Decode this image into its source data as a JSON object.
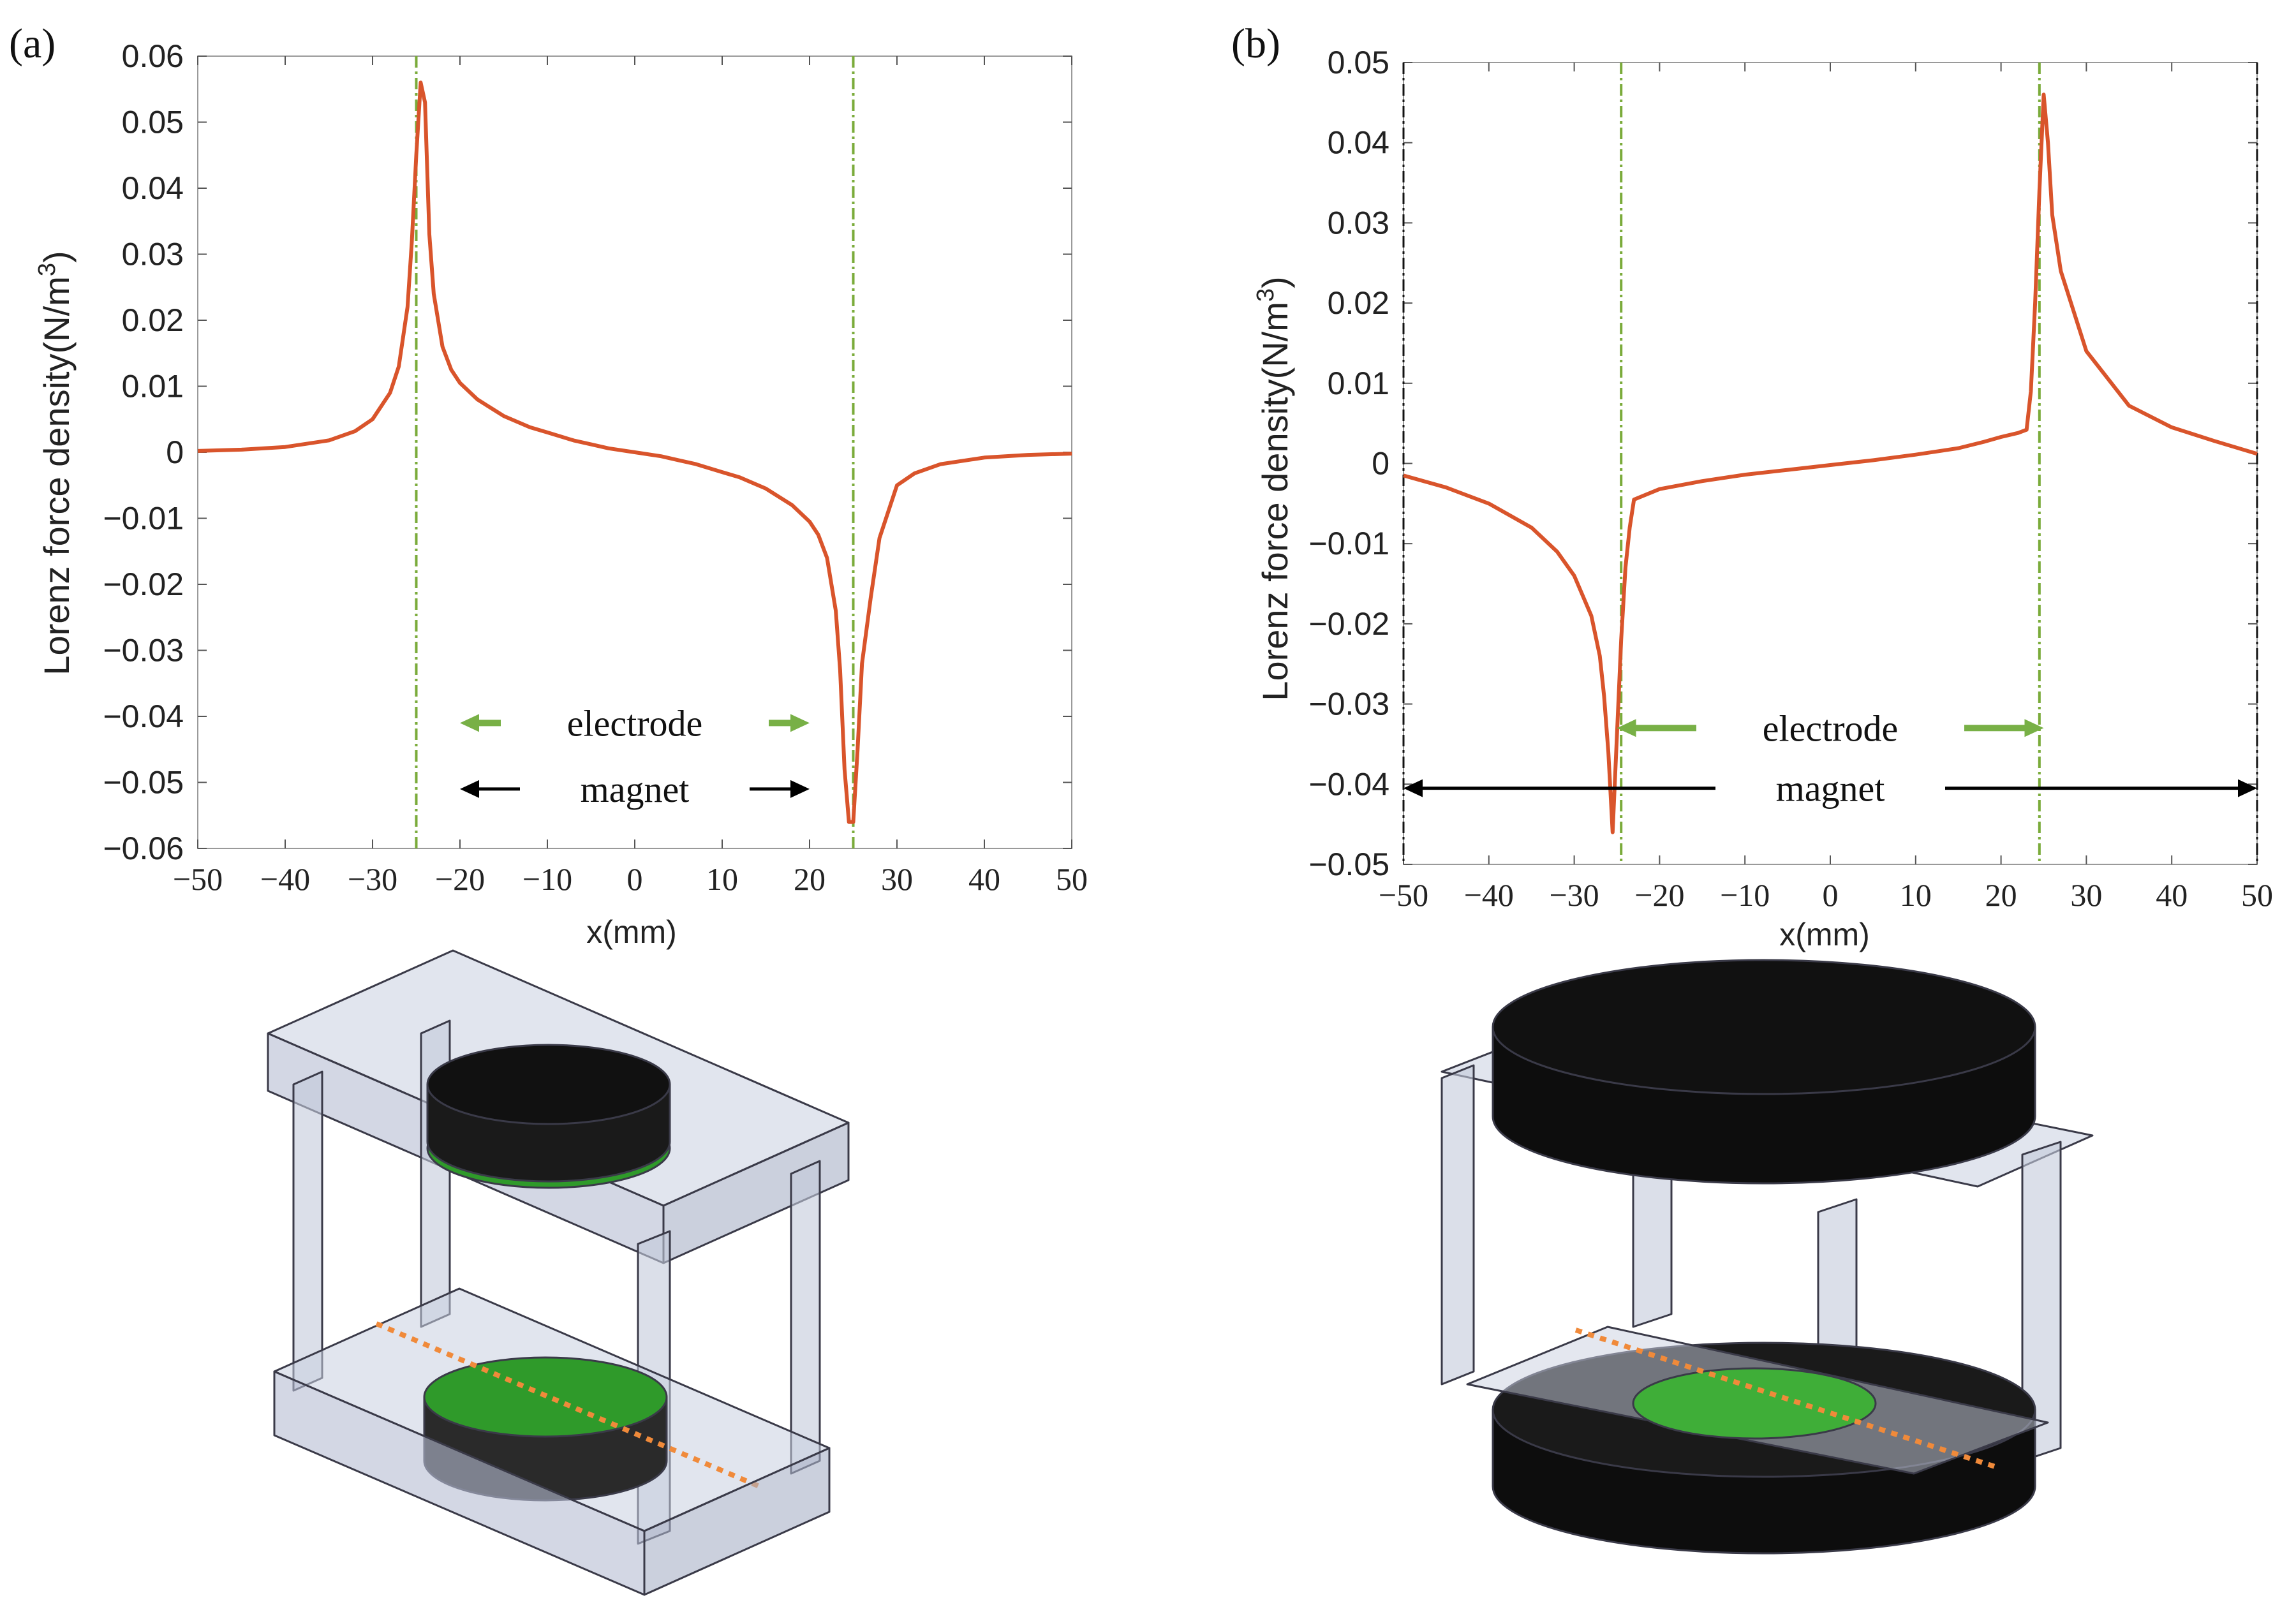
{
  "panel_labels": [
    "(a)",
    "(b)"
  ],
  "colors": {
    "curve": "#d9542b",
    "electrode_line": "#7aab3a",
    "magnet_line": "#000000",
    "electrode_arrow": "#78b046",
    "magnet_arrow": "#000000",
    "axis": "#222222",
    "frame_fill": "#c9cfe0",
    "frame_stroke": "#3a3a48",
    "magnet_fill": "#111111",
    "electrode_fill": "#2f9a2a",
    "dotted_path": "#f08a3a"
  },
  "chart_data": [
    {
      "panel": "(a)",
      "type": "line",
      "title": "",
      "xlabel": "x(mm)",
      "ylabel": "Lorenz force density(N/m",
      "ylabel_superscript": "3",
      "ylabel_close": ")",
      "xlim": [
        -50,
        50
      ],
      "ylim": [
        -0.06,
        0.06
      ],
      "xticks": [
        -50,
        -40,
        -30,
        -20,
        -10,
        0,
        10,
        20,
        30,
        40,
        50
      ],
      "xtick_labels": [
        "−50",
        "−40",
        "−30",
        "−20",
        "−10",
        "0",
        "10",
        "20",
        "30",
        "40",
        "50"
      ],
      "yticks": [
        0.06,
        0.05,
        0.04,
        0.03,
        0.02,
        0.01,
        0,
        -0.01,
        -0.02,
        -0.03,
        -0.04,
        -0.05,
        -0.06
      ],
      "ytick_labels": [
        "0.06",
        "0.05",
        "0.04",
        "0.03",
        "0.02",
        "0.01",
        "0",
        "−0.01",
        "−0.02",
        "−0.03",
        "−0.04",
        "−0.05",
        "−0.06"
      ],
      "series": [
        {
          "name": "Lorenz force density",
          "x": [
            -50,
            -45,
            -40,
            -35,
            -32,
            -30,
            -28,
            -27,
            -26,
            -25.5,
            -25,
            -24.5,
            -24,
            -23.5,
            -23,
            -22,
            -21,
            -20,
            -18,
            -15,
            -12,
            -10,
            -7,
            -5,
            -3,
            0,
            3,
            5,
            7,
            10,
            12,
            15,
            18,
            20,
            21,
            22,
            23,
            23.5,
            24,
            24.5,
            25,
            25.5,
            26,
            27,
            28,
            30,
            32,
            35,
            40,
            45,
            50
          ],
          "y": [
            0.0002,
            0.0004,
            0.0008,
            0.0018,
            0.0032,
            0.005,
            0.009,
            0.013,
            0.022,
            0.032,
            0.045,
            0.056,
            0.053,
            0.033,
            0.024,
            0.016,
            0.0125,
            0.0105,
            0.008,
            0.0055,
            0.0038,
            0.003,
            0.0018,
            0.0012,
            0.0006,
            0.0,
            -0.0006,
            -0.0012,
            -0.0018,
            -0.003,
            -0.0038,
            -0.0055,
            -0.008,
            -0.0105,
            -0.0125,
            -0.016,
            -0.024,
            -0.033,
            -0.048,
            -0.056,
            -0.056,
            -0.045,
            -0.032,
            -0.022,
            -0.013,
            -0.005,
            -0.0032,
            -0.0018,
            -0.0008,
            -0.0004,
            -0.0002
          ]
        }
      ],
      "vlines": [
        -25,
        25
      ],
      "annotations": [
        {
          "text": "electrode",
          "arrow_from": -20,
          "arrow_to": 20,
          "y": -0.041,
          "style": "electrode"
        },
        {
          "text": "magnet",
          "arrow_from": -20,
          "arrow_to": 20,
          "y": -0.051,
          "style": "magnet"
        }
      ],
      "grid": false
    },
    {
      "panel": "(b)",
      "type": "line",
      "title": "",
      "xlabel": "x(mm)",
      "ylabel": "Lorenz force density(N/m",
      "ylabel_superscript": "3",
      "ylabel_close": ")",
      "xlim": [
        -50,
        50
      ],
      "ylim": [
        -0.05,
        0.05
      ],
      "xticks": [
        -50,
        -40,
        -30,
        -20,
        -10,
        0,
        10,
        20,
        30,
        40,
        50
      ],
      "xtick_labels": [
        "−50",
        "−40",
        "−30",
        "−20",
        "−10",
        "0",
        "10",
        "20",
        "30",
        "40",
        "50"
      ],
      "yticks": [
        0.05,
        0.04,
        0.03,
        0.02,
        0.01,
        0,
        -0.01,
        -0.02,
        -0.03,
        -0.04,
        -0.05
      ],
      "ytick_labels": [
        "0.05",
        "0.04",
        "0.03",
        "0.02",
        "0.01",
        "0",
        "−0.01",
        "−0.02",
        "−0.03",
        "−0.04",
        "−0.05"
      ],
      "series": [
        {
          "name": "Lorenz force density",
          "x": [
            -50,
            -45,
            -40,
            -35,
            -32,
            -30,
            -28,
            -27,
            -26.5,
            -26,
            -25.5,
            -25,
            -24.5,
            -24,
            -23.5,
            -23,
            -20,
            -15,
            -10,
            -5,
            0,
            5,
            10,
            15,
            18,
            20,
            22,
            23,
            23.5,
            24,
            24.5,
            25,
            25.5,
            26,
            27,
            30,
            35,
            40,
            45,
            50
          ],
          "y": [
            -0.0015,
            -0.003,
            -0.005,
            -0.008,
            -0.011,
            -0.014,
            -0.019,
            -0.024,
            -0.029,
            -0.036,
            -0.046,
            -0.034,
            -0.022,
            -0.013,
            -0.008,
            -0.0045,
            -0.0032,
            -0.0022,
            -0.0014,
            -0.0008,
            -0.0002,
            0.0004,
            0.0011,
            0.0019,
            0.0027,
            0.0033,
            0.0038,
            0.0042,
            0.009,
            0.02,
            0.034,
            0.046,
            0.04,
            0.031,
            0.024,
            0.014,
            0.0072,
            0.0045,
            0.0028,
            0.0012
          ]
        }
      ],
      "vlines": [
        -24.5,
        24.5
      ],
      "boundary_vlines": [
        -50,
        50
      ],
      "annotations": [
        {
          "text": "electrode",
          "arrow_from": -25,
          "arrow_to": 25,
          "y": -0.033,
          "style": "electrode"
        },
        {
          "text": "magnet",
          "arrow_from": -50,
          "arrow_to": 50,
          "y": -0.0405,
          "style": "magnet"
        }
      ],
      "grid": false
    }
  ]
}
